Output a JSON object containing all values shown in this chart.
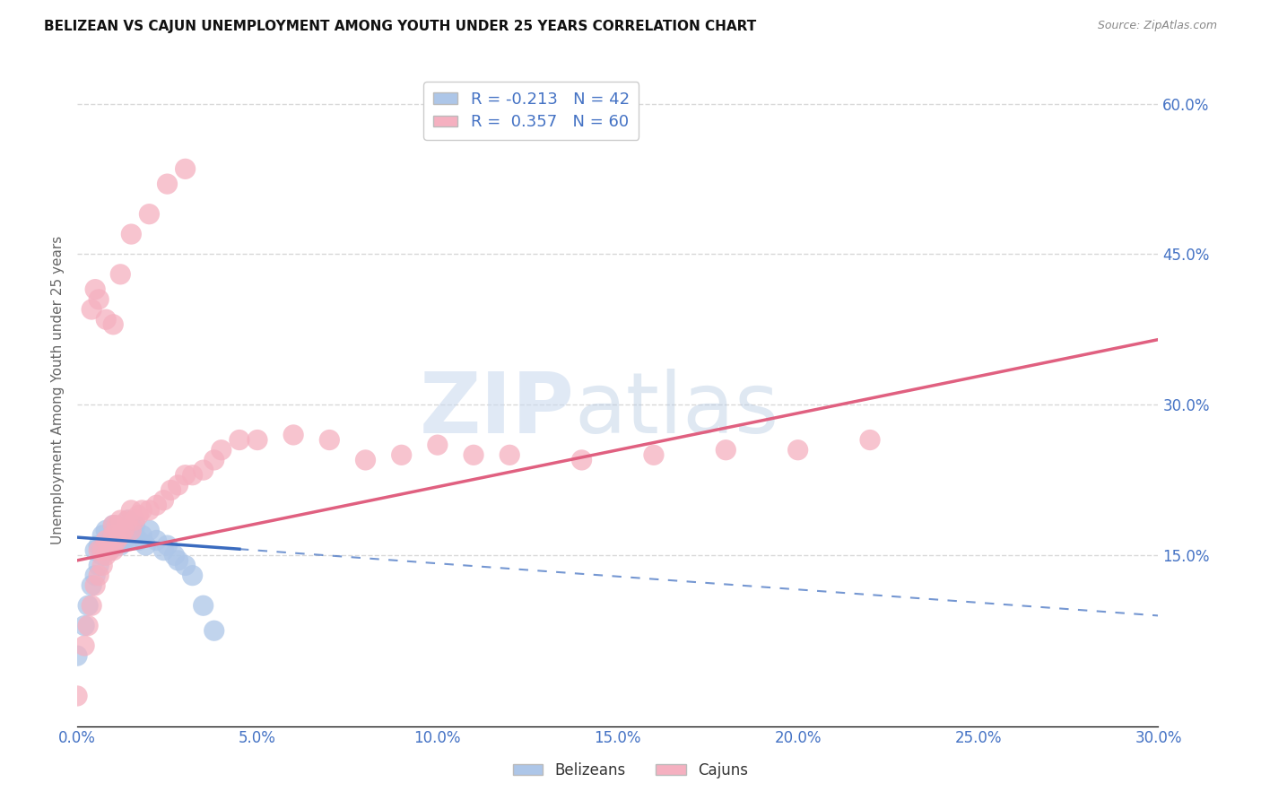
{
  "title": "BELIZEAN VS CAJUN UNEMPLOYMENT AMONG YOUTH UNDER 25 YEARS CORRELATION CHART",
  "source": "Source: ZipAtlas.com",
  "ylabel_label": "Unemployment Among Youth under 25 years",
  "right_yticks": [
    "60.0%",
    "45.0%",
    "30.0%",
    "15.0%"
  ],
  "right_ytick_vals": [
    0.6,
    0.45,
    0.3,
    0.15
  ],
  "xlim": [
    0.0,
    0.3
  ],
  "ylim": [
    -0.02,
    0.65
  ],
  "legend_blue_label": "R = -0.213   N = 42",
  "legend_pink_label": "R =  0.357   N = 60",
  "belizean_color": "#adc6e8",
  "cajun_color": "#f5b0c0",
  "belizean_line_color": "#3a6bbf",
  "cajun_line_color": "#e06080",
  "belizean_scatter_x": [
    0.0,
    0.002,
    0.003,
    0.004,
    0.005,
    0.005,
    0.006,
    0.006,
    0.007,
    0.007,
    0.008,
    0.008,
    0.009,
    0.009,
    0.01,
    0.01,
    0.01,
    0.011,
    0.011,
    0.012,
    0.012,
    0.013,
    0.013,
    0.014,
    0.014,
    0.015,
    0.015,
    0.016,
    0.016,
    0.017,
    0.018,
    0.019,
    0.02,
    0.022,
    0.024,
    0.025,
    0.027,
    0.028,
    0.03,
    0.032,
    0.035,
    0.038
  ],
  "belizean_scatter_y": [
    0.05,
    0.08,
    0.1,
    0.12,
    0.13,
    0.155,
    0.14,
    0.16,
    0.15,
    0.17,
    0.155,
    0.175,
    0.155,
    0.165,
    0.16,
    0.17,
    0.18,
    0.165,
    0.175,
    0.16,
    0.175,
    0.165,
    0.175,
    0.17,
    0.185,
    0.165,
    0.18,
    0.17,
    0.18,
    0.165,
    0.17,
    0.16,
    0.175,
    0.165,
    0.155,
    0.16,
    0.15,
    0.145,
    0.14,
    0.13,
    0.1,
    0.075
  ],
  "cajun_scatter_x": [
    0.0,
    0.002,
    0.003,
    0.004,
    0.005,
    0.006,
    0.006,
    0.007,
    0.007,
    0.008,
    0.008,
    0.009,
    0.01,
    0.01,
    0.01,
    0.011,
    0.011,
    0.012,
    0.012,
    0.013,
    0.014,
    0.015,
    0.015,
    0.016,
    0.017,
    0.018,
    0.02,
    0.022,
    0.024,
    0.026,
    0.028,
    0.03,
    0.032,
    0.035,
    0.038,
    0.04,
    0.045,
    0.05,
    0.06,
    0.07,
    0.08,
    0.09,
    0.1,
    0.11,
    0.12,
    0.14,
    0.16,
    0.18,
    0.2,
    0.22,
    0.004,
    0.005,
    0.006,
    0.008,
    0.01,
    0.012,
    0.015,
    0.02,
    0.025,
    0.03
  ],
  "cajun_scatter_y": [
    0.01,
    0.06,
    0.08,
    0.1,
    0.12,
    0.13,
    0.155,
    0.14,
    0.155,
    0.15,
    0.165,
    0.155,
    0.155,
    0.17,
    0.18,
    0.165,
    0.18,
    0.17,
    0.185,
    0.175,
    0.185,
    0.175,
    0.195,
    0.185,
    0.19,
    0.195,
    0.195,
    0.2,
    0.205,
    0.215,
    0.22,
    0.23,
    0.23,
    0.235,
    0.245,
    0.255,
    0.265,
    0.265,
    0.27,
    0.265,
    0.245,
    0.25,
    0.26,
    0.25,
    0.25,
    0.245,
    0.25,
    0.255,
    0.255,
    0.265,
    0.395,
    0.415,
    0.405,
    0.385,
    0.38,
    0.43,
    0.47,
    0.49,
    0.52,
    0.535
  ],
  "background_color": "#ffffff",
  "grid_color": "#d8d8d8",
  "belizean_line_x0": 0.0,
  "belizean_line_x1": 0.3,
  "belizean_line_y0": 0.168,
  "belizean_line_y1": 0.09,
  "cajun_line_x0": 0.0,
  "cajun_line_x1": 0.3,
  "cajun_line_y0": 0.145,
  "cajun_line_y1": 0.365
}
